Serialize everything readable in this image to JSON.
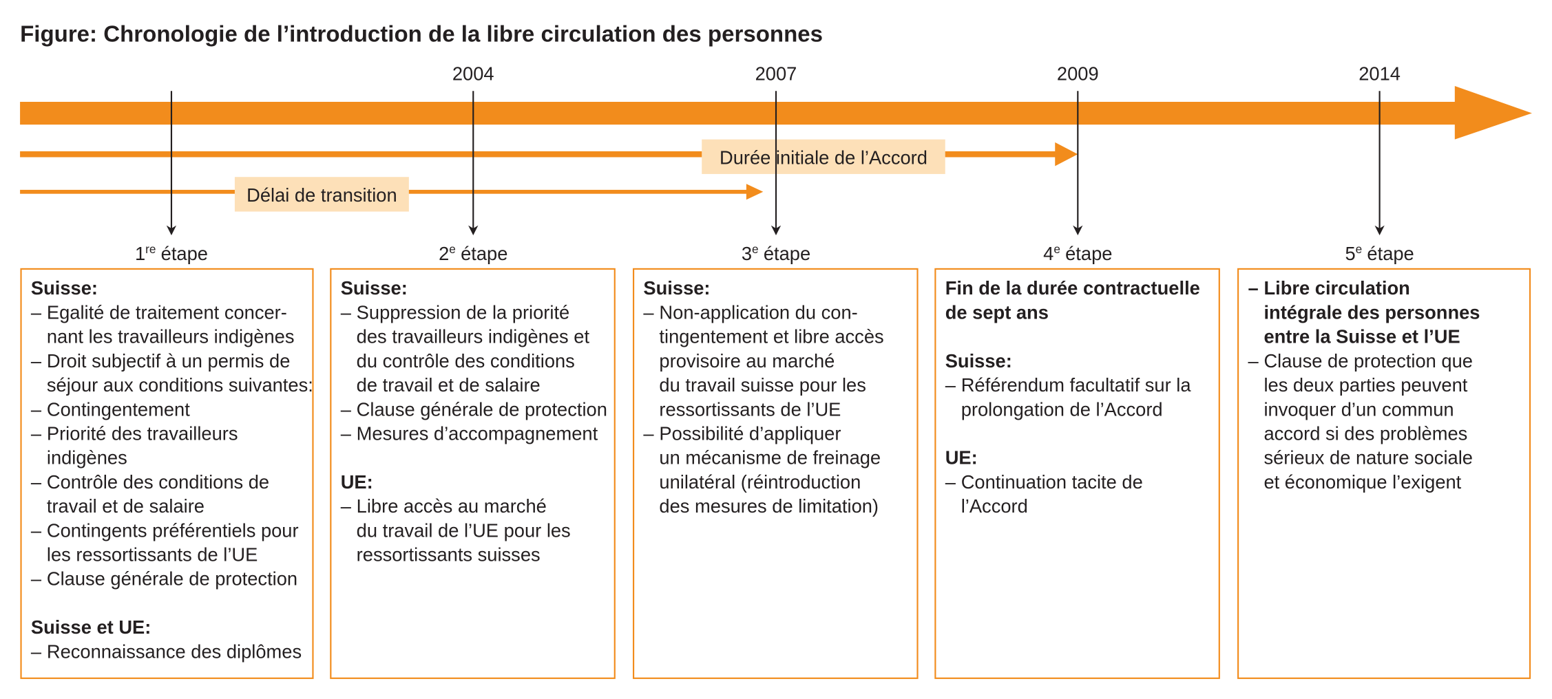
{
  "title": "Figure: Chronologie de l’introduction de la libre circulation des personnes",
  "bullet": "–",
  "arrows": [
    {
      "label": "Durée initiale de l’Accord"
    },
    {
      "label": "Délai de transition"
    }
  ],
  "stages": [
    {
      "number": "1",
      "sup": "re",
      "label": "étape",
      "sections": [
        {
          "heading": [
            "Suisse:"
          ],
          "items": [
            [
              "Egalité de traitement concer-",
              "nant les travailleurs indigènes"
            ],
            [
              "Droit subjectif à un permis de",
              "séjour aux conditions suivantes:"
            ],
            [
              "Contingentement"
            ],
            [
              "Priorité des travailleurs",
              "indigènes"
            ],
            [
              "Contrôle des conditions de",
              "travail et de salaire"
            ],
            [
              "Contingents préférentiels pour",
              "les ressortissants de l’UE"
            ],
            [
              "Clause générale de protection"
            ]
          ]
        },
        {
          "heading": [
            "Suisse et UE:"
          ],
          "items": [
            [
              "Reconnaissance des diplômes"
            ]
          ]
        }
      ]
    },
    {
      "year": "2004",
      "number": "2",
      "sup": "e",
      "label": "étape",
      "sections": [
        {
          "heading": [
            "Suisse:"
          ],
          "items": [
            [
              "Suppression de la priorité",
              "des travailleurs indigènes et",
              "du contrôle des conditions",
              "de travail et de salaire"
            ],
            [
              "Clause générale de protection"
            ],
            [
              "Mesures d’accompagnement"
            ]
          ]
        },
        {
          "heading": [
            "UE:"
          ],
          "items": [
            [
              "Libre accès au marché",
              "du travail de l’UE pour les",
              "ressortissants suisses"
            ]
          ]
        }
      ]
    },
    {
      "year": "2007",
      "number": "3",
      "sup": "e",
      "label": "étape",
      "sections": [
        {
          "heading": [
            "Suisse:"
          ],
          "items": [
            [
              "Non-application du con-",
              "tingentement et libre accès",
              "provisoire au marché",
              "du travail suisse pour les",
              "ressortissants de l’UE"
            ],
            [
              "Possibilité d’appliquer",
              "un mécanisme de freinage",
              "unilatéral (réintroduction",
              "des mesures de limitation)"
            ]
          ]
        }
      ]
    },
    {
      "year": "2009",
      "number": "4",
      "sup": "e",
      "label": "étape",
      "sections": [
        {
          "heading": [
            "Fin de la durée contractuelle",
            "de sept ans"
          ],
          "items": []
        },
        {
          "heading": [
            "Suisse:"
          ],
          "items": [
            [
              "Référendum facultatif sur la",
              "prolongation de l’Accord"
            ]
          ]
        },
        {
          "heading": [
            "UE:"
          ],
          "items": [
            [
              "Continuation tacite de",
              "l’Accord"
            ]
          ]
        }
      ]
    },
    {
      "year": "2014",
      "number": "5",
      "sup": "e",
      "label": "étape",
      "sections": [
        {
          "bold": true,
          "items": [
            [
              "Libre circulation",
              "intégrale des personnes",
              "entre la Suisse et l’UE"
            ]
          ]
        },
        {
          "items": [
            [
              "Clause de protection que",
              "les deux parties peuvent",
              "invoquer d’un commun",
              "accord si des problèmes",
              "sérieux de nature sociale",
              "et économique l’exigent"
            ]
          ]
        }
      ]
    }
  ]
}
